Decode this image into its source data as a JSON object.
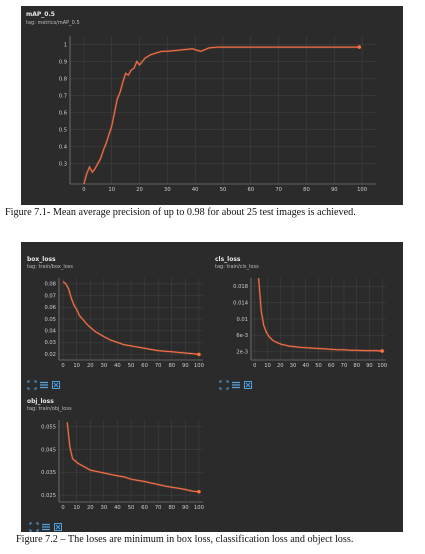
{
  "colors": {
    "panel_bg": "#2b2b2b",
    "line": "#ff7043",
    "line_light": "#c86a4b",
    "grid": "#444444",
    "text": "#cfcfcf",
    "icon": "#4fa3e0"
  },
  "figure1": {
    "title": "mAP_0.5",
    "tag": "tag: metrics/mAP_0.5",
    "caption": "Figure 7.1- Mean average precision of up to 0.98 for about 25 test images is achieved."
  },
  "figure2": {
    "caption": "Figure 7.2 – The loses are minimum in box loss, classification loss and object loss."
  },
  "loss_cards": [
    {
      "title": "box_loss",
      "tag": "tag: train/box_loss"
    },
    {
      "title": "cls_loss",
      "tag": "tag: train/cls_loss"
    },
    {
      "title": "obj_loss",
      "tag": "tag: train/obj_loss"
    }
  ],
  "icons": [
    "fit-domain-icon",
    "data-table-icon",
    "download-icon"
  ],
  "chart_data": [
    {
      "type": "line",
      "title": "mAP_0.5",
      "xlim": [
        -5,
        105
      ],
      "ylim": [
        0.18,
        1.05
      ],
      "xticks": [
        "0",
        "10",
        "20",
        "30",
        "40",
        "50",
        "60",
        "70",
        "80",
        "90",
        "100"
      ],
      "yticks": [
        "0.3",
        "0.4",
        "0.5",
        "0.6",
        "0.7",
        "0.8",
        "0.9",
        "1"
      ],
      "ytick_values": [
        0.3,
        0.4,
        0.5,
        0.6,
        0.7,
        0.8,
        0.9,
        1.0
      ],
      "x": [
        0,
        1,
        2,
        3,
        4,
        5,
        6,
        7,
        8,
        9,
        10,
        11,
        12,
        13,
        14,
        15,
        16,
        17,
        18,
        19,
        20,
        22,
        24,
        26,
        28,
        30,
        33,
        36,
        39,
        42,
        45,
        48,
        52,
        56,
        60,
        65,
        70,
        75,
        80,
        85,
        90,
        95,
        99
      ],
      "y": [
        0.18,
        0.24,
        0.28,
        0.25,
        0.27,
        0.3,
        0.33,
        0.38,
        0.42,
        0.47,
        0.52,
        0.6,
        0.68,
        0.72,
        0.78,
        0.83,
        0.82,
        0.85,
        0.86,
        0.9,
        0.88,
        0.92,
        0.94,
        0.95,
        0.96,
        0.96,
        0.965,
        0.97,
        0.975,
        0.96,
        0.98,
        0.985,
        0.985,
        0.985,
        0.985,
        0.985,
        0.985,
        0.985,
        0.985,
        0.985,
        0.985,
        0.985,
        0.985
      ]
    },
    {
      "type": "line",
      "title": "box_loss",
      "xlim": [
        -3,
        103
      ],
      "ylim": [
        0.015,
        0.085
      ],
      "xticks": [
        "0",
        "10",
        "20",
        "30",
        "40",
        "50",
        "60",
        "70",
        "80",
        "90",
        "100"
      ],
      "yticks": [
        "0.02",
        "0.03",
        "0.04",
        "0.05",
        "0.06",
        "0.07",
        "0.08"
      ],
      "ytick_values": [
        0.02,
        0.03,
        0.04,
        0.05,
        0.06,
        0.07,
        0.08
      ],
      "x": [
        0,
        2,
        4,
        6,
        8,
        10,
        12,
        15,
        18,
        21,
        24,
        27,
        30,
        35,
        40,
        45,
        50,
        55,
        60,
        65,
        70,
        75,
        80,
        85,
        90,
        95,
        100
      ],
      "y": [
        0.082,
        0.08,
        0.076,
        0.068,
        0.062,
        0.058,
        0.053,
        0.049,
        0.045,
        0.042,
        0.039,
        0.037,
        0.035,
        0.032,
        0.03,
        0.028,
        0.027,
        0.026,
        0.025,
        0.024,
        0.023,
        0.0225,
        0.022,
        0.0215,
        0.021,
        0.0205,
        0.0198
      ]
    },
    {
      "type": "line",
      "title": "cls_loss",
      "xlim": [
        -3,
        103
      ],
      "ylim": [
        0.0,
        0.02
      ],
      "xticks": [
        "0",
        "10",
        "20",
        "30",
        "40",
        "50",
        "60",
        "70",
        "80",
        "90",
        "100"
      ],
      "yticks": [
        "2e-3",
        "6e-3",
        "0.01",
        "0.014",
        "0.018"
      ],
      "ytick_values": [
        0.002,
        0.006,
        0.01,
        0.014,
        0.018
      ],
      "x": [
        3,
        5,
        7,
        9,
        11,
        13,
        15,
        18,
        21,
        24,
        27,
        30,
        35,
        40,
        45,
        50,
        55,
        60,
        65,
        70,
        75,
        80,
        85,
        90,
        95,
        100
      ],
      "y": [
        0.02,
        0.012,
        0.0085,
        0.0068,
        0.0058,
        0.0051,
        0.0046,
        0.0042,
        0.0038,
        0.0036,
        0.0034,
        0.0033,
        0.0031,
        0.003,
        0.0029,
        0.0028,
        0.0027,
        0.0026,
        0.0025,
        0.0025,
        0.0024,
        0.0024,
        0.0023,
        0.0023,
        0.0023,
        0.0022
      ]
    },
    {
      "type": "line",
      "title": "obj_loss",
      "xlim": [
        -3,
        103
      ],
      "ylim": [
        0.022,
        0.058
      ],
      "xticks": [
        "0",
        "10",
        "20",
        "30",
        "40",
        "50",
        "60",
        "70",
        "80",
        "90",
        "100"
      ],
      "yticks": [
        "0.025",
        "0.035",
        "0.045",
        "0.055"
      ],
      "ytick_values": [
        0.025,
        0.035,
        0.045,
        0.055
      ],
      "x": [
        3,
        5,
        7,
        9,
        11,
        14,
        17,
        20,
        24,
        28,
        32,
        36,
        40,
        45,
        50,
        55,
        60,
        65,
        70,
        75,
        80,
        85,
        90,
        95,
        100
      ],
      "y": [
        0.057,
        0.046,
        0.041,
        0.04,
        0.039,
        0.038,
        0.037,
        0.036,
        0.0355,
        0.035,
        0.0345,
        0.034,
        0.0335,
        0.033,
        0.032,
        0.0315,
        0.031,
        0.0303,
        0.0297,
        0.029,
        0.0285,
        0.028,
        0.0275,
        0.0268,
        0.0265
      ]
    }
  ]
}
